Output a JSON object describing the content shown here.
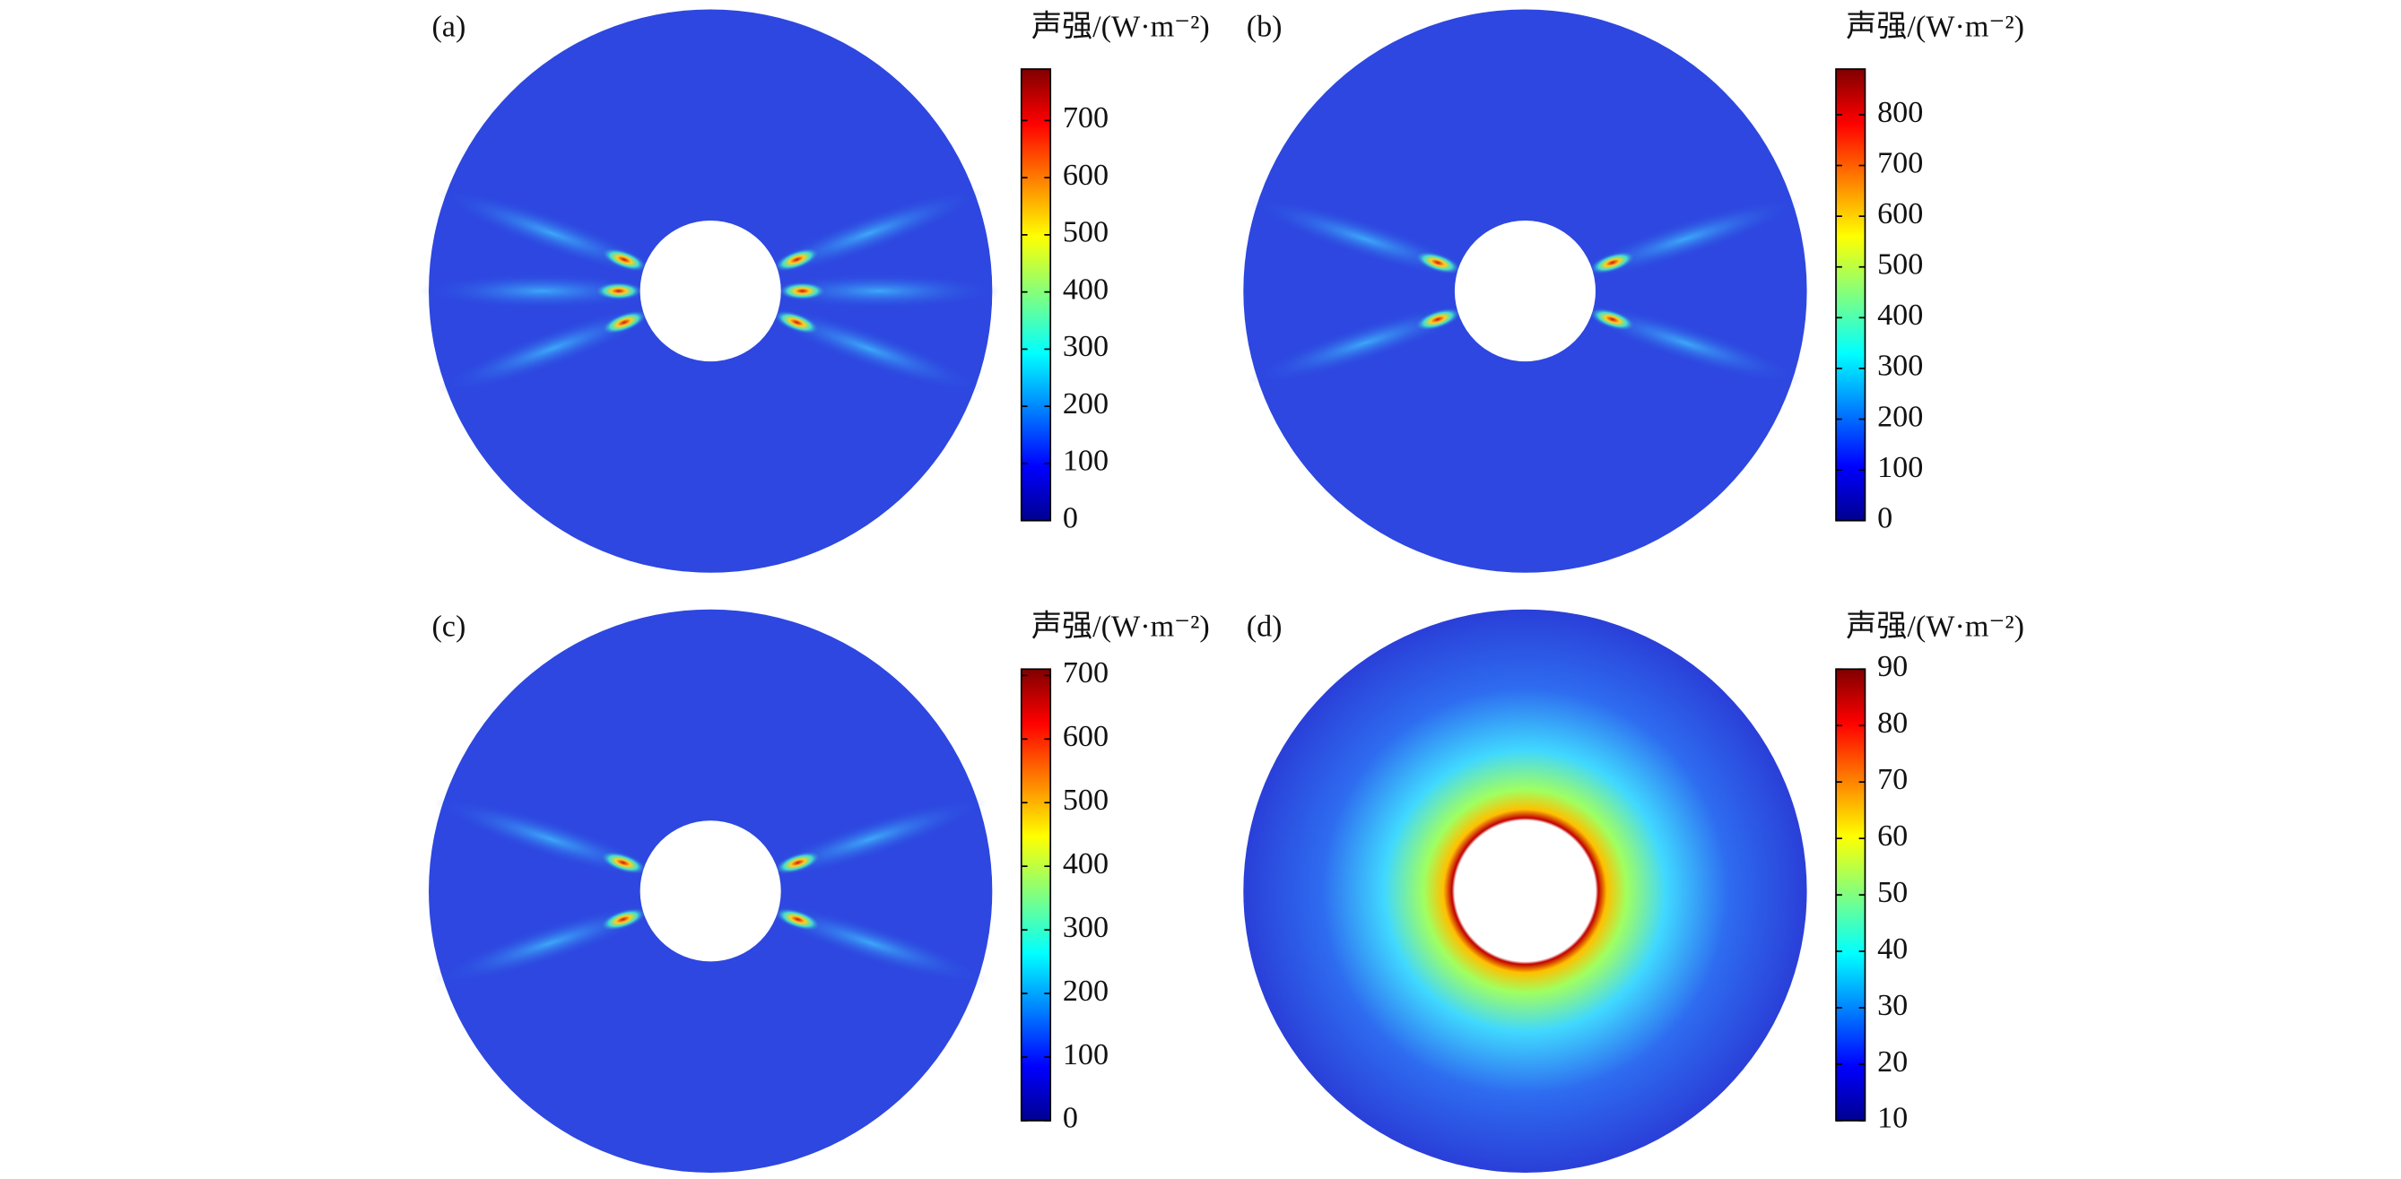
{
  "chart_data": [
    {
      "type": "heatmap",
      "label": "(a)",
      "colorbar_label": "声强/(W·m⁻²)",
      "clim": [
        0,
        790
      ],
      "cticks": [
        0,
        100,
        200,
        300,
        400,
        500,
        600,
        700
      ]
    },
    {
      "type": "heatmap",
      "label": "(b)",
      "colorbar_label": "声强/(W·m⁻²)",
      "clim": [
        0,
        890
      ],
      "cticks": [
        0,
        100,
        200,
        300,
        400,
        500,
        600,
        700,
        800
      ]
    },
    {
      "type": "heatmap",
      "label": "(c)",
      "colorbar_label": "声强/(W·m⁻²)",
      "clim": [
        0,
        710
      ],
      "cticks": [
        0,
        100,
        200,
        300,
        400,
        500,
        600,
        700
      ]
    },
    {
      "type": "heatmap",
      "label": "(d)",
      "colorbar_label": "声强/(W·m⁻²)",
      "clim": [
        10,
        90
      ],
      "cticks": [
        10,
        20,
        30,
        40,
        50,
        60,
        70,
        80,
        90
      ]
    }
  ]
}
